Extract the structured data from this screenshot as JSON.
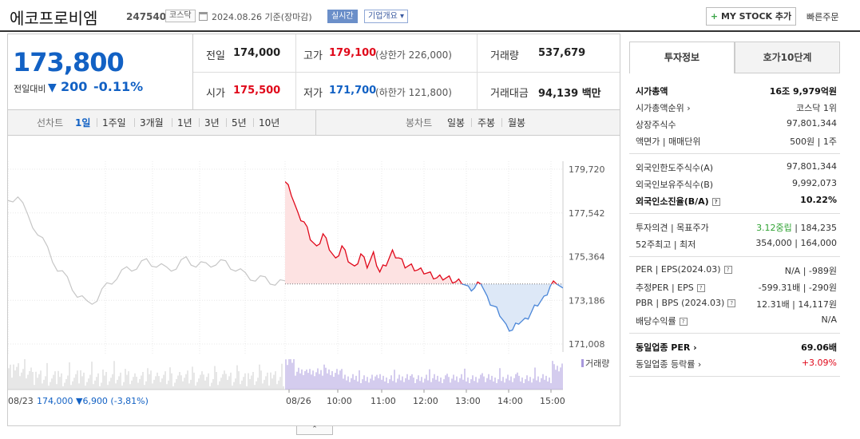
{
  "header": {
    "stock_name": "에코프로비엠",
    "stock_code": "247540",
    "market": "코스닥",
    "base_date": "2024.08.26  기준(장마감)",
    "realtime_label": "실시간",
    "company_overview_label": "기업개요",
    "mystock_label": "MY STOCK 추가",
    "quick_order_label": "빠른주문"
  },
  "price": {
    "current": "173,800",
    "diff_label": "전일대비",
    "diff_value": "200",
    "diff_pct": "-0.11%"
  },
  "quote": {
    "prev_close_label": "전일",
    "prev_close": "174,000",
    "high_label": "고가",
    "high": "179,100",
    "upper_limit": "(상한가 226,000)",
    "volume_label": "거래량",
    "volume": "537,679",
    "open_label": "시가",
    "open": "175,500",
    "low_label": "저가",
    "low": "171,700",
    "lower_limit": "(하한가 121,800)",
    "amount_label": "거래대금",
    "amount": "94,139 백만"
  },
  "period_bar": {
    "line_label": "선차트",
    "periods": [
      "1일",
      "1주일",
      "3개월",
      "1년",
      "3년",
      "5년",
      "10년"
    ],
    "candle_label": "봉차트",
    "candles": [
      "일봉",
      "주봉",
      "월봉"
    ]
  },
  "chart_data": {
    "type": "line",
    "y_ticks": [
      "179,720",
      "177,542",
      "175,364",
      "173,186",
      "171,008"
    ],
    "ylim": [
      171008,
      179720
    ],
    "x_ticks": [
      "08/26",
      "10:00",
      "11:00",
      "12:00",
      "13:00",
      "14:00",
      "15:00"
    ],
    "prev_day_label": "08/23",
    "prev_day_summary": "174,000 ▼6,900 (-3,81%)",
    "volume_legend": "거래량",
    "prev_close": 174000,
    "series": [
      {
        "values": [
          179100,
          178400,
          177600,
          177100,
          176200,
          175900,
          176500,
          175700,
          175300,
          175900,
          175100,
          174900,
          175500,
          174800,
          175600,
          174600,
          174900,
          175700,
          175300,
          174800,
          175000,
          174700,
          174500,
          174600,
          174300,
          174200,
          174400,
          174100,
          174000,
          173900,
          173800,
          174000,
          173400,
          172900,
          172400,
          172000,
          171700,
          172000,
          172300,
          172600,
          172900,
          173400,
          173900,
          174000,
          173800
        ]
      }
    ],
    "prev_series": [
      {
        "values": [
          178000,
          178500,
          177300,
          176600,
          175700,
          174800,
          174200,
          173500,
          173000,
          173300,
          173900,
          174400,
          174700,
          174900,
          175100,
          175000,
          174700,
          174900,
          175200,
          175000,
          174900,
          175100,
          175000,
          174800,
          174400,
          174300,
          174200,
          174100,
          174000
        ]
      }
    ]
  },
  "invest_panel": {
    "tabs": [
      "투자정보",
      "호가10단계"
    ],
    "rows1": [
      {
        "k": "시가총액",
        "v": "16조 9,979억원"
      },
      {
        "k": "시가총액순위 ›",
        "v": "코스닥 1위"
      },
      {
        "k": "상장주식수",
        "v": "97,801,344"
      },
      {
        "k": "액면가 | 매매단위",
        "v": "500원 | 1주"
      }
    ],
    "rows2": [
      {
        "k": "외국인한도주식수(A)",
        "v": "97,801,344"
      },
      {
        "k": "외국인보유주식수(B)",
        "v": "9,992,073"
      },
      {
        "k": "외국인소진율(B/A)",
        "v": "10.22%"
      }
    ],
    "rows3": [
      {
        "k": "투자의견 | 목표주가",
        "v_green": "3.12중립",
        "v": "| 184,235"
      },
      {
        "k": "52주최고 | 최저",
        "v": "354,000 | 164,000"
      }
    ],
    "rows4": [
      {
        "k": "PER | EPS(2024.03)",
        "v": "N/A | -989원"
      },
      {
        "k": "추정PER | EPS",
        "v": "-599.31배 | -290원"
      },
      {
        "k": "PBR | BPS (2024.03)",
        "v": "12.31배 | 14,117원"
      },
      {
        "k": "배당수익률",
        "v": "N/A"
      }
    ],
    "rows5": [
      {
        "k": "동일업종 PER ›",
        "v": "69.06배"
      },
      {
        "k": "동일업종 등락률 ›",
        "v": "+3.09%"
      }
    ]
  },
  "colors": {
    "up": "#e0081a",
    "down": "#1261c4",
    "chart_up_fill": "#fde2e2",
    "chart_down_fill": "#dde8f7"
  }
}
